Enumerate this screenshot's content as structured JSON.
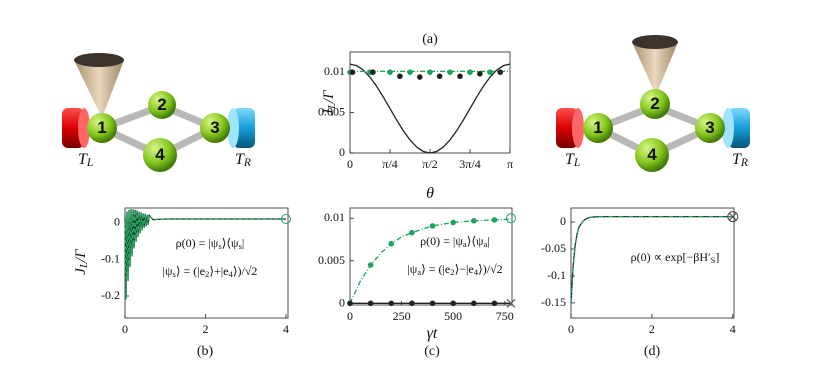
{
  "chart_data": [
    {
      "type": "line",
      "title": "(a)",
      "xlabel": "θ",
      "ylabel": "J_L/Γ",
      "xlim": [
        0,
        3.1416
      ],
      "ylim": [
        0,
        0.0125
      ],
      "xticks": [
        0,
        {
          "value": 0.7854,
          "label": "π/4"
        },
        {
          "value": 1.5708,
          "label": "π/2"
        },
        {
          "value": 2.3562,
          "label": "3π/4"
        },
        {
          "value": 3.1416,
          "label": "π"
        }
      ],
      "yticks": [
        0,
        0.005,
        0.01
      ],
      "series": [
        {
          "color": "#222222",
          "linestyle": "solid",
          "x": [
            0,
            0.1309,
            0.2618,
            0.3927,
            0.5236,
            0.6545,
            0.7854,
            0.9163,
            1.0472,
            1.1781,
            1.309,
            1.4399,
            1.5708,
            1.7017,
            1.8326,
            1.9635,
            2.0944,
            2.2253,
            2.3562,
            2.4871,
            2.618,
            2.7489,
            2.8798,
            3.0107,
            3.1416
          ],
          "values": [
            0.011,
            0.01081,
            0.01026,
            0.00939,
            0.00825,
            0.00692,
            0.0055,
            0.00408,
            0.00275,
            0.00161,
            0.00074,
            0.00019,
            0,
            0.00019,
            0.00074,
            0.00161,
            0.00275,
            0.00408,
            0.0055,
            0.00692,
            0.00825,
            0.00939,
            0.01026,
            0.01081,
            0.011
          ]
        },
        {
          "color": "#1fa35c",
          "linestyle": "dashdot",
          "x": [
            0,
            3.1416
          ],
          "values": [
            0.0101,
            0.0101
          ]
        },
        {
          "color": "#1fa35c",
          "marker": "dot",
          "x": [
            0,
            0.393,
            0.785,
            1.178,
            1.571,
            1.963,
            2.356,
            2.749
          ],
          "values": [
            0.01,
            0.01,
            0.01,
            0.01,
            0.01,
            0.01,
            0.01,
            0.01
          ]
        },
        {
          "color": "#222222",
          "marker": "dot",
          "x": [
            0.05,
            0.45,
            0.98,
            1.37,
            1.76,
            2.16,
            2.55,
            2.95
          ],
          "values": [
            0.01,
            0.01,
            0.0095,
            0.0094,
            0.0095,
            0.0095,
            0.0098,
            0.01
          ]
        }
      ]
    },
    {
      "type": "line",
      "title": "(b)",
      "ylabel": "J_L/Γ",
      "annotations": [
        "ρ(0) = |ψ_s⟩⟨ψ_s|",
        "|ψ_s⟩ = (|e_2⟩+|e_4⟩)/√2"
      ],
      "xlim": [
        0,
        4.05
      ],
      "ylim": [
        -0.26,
        0.04
      ],
      "xticks": [
        0,
        2,
        4
      ],
      "yticks": [
        0,
        -0.1,
        -0.2
      ],
      "series": [
        {
          "color": "#222222",
          "linestyle": "solid",
          "x": [
            0,
            0.025,
            0.05,
            0.075,
            0.1,
            0.125,
            0.15,
            0.175,
            0.2,
            0.225,
            0.25,
            0.275,
            0.3,
            0.325,
            0.35,
            0.375,
            0.4,
            0.425,
            0.45,
            0.475,
            0.5,
            0.525,
            0.55,
            0.575,
            0.6,
            0.7,
            0.8,
            1,
            2,
            3,
            4
          ],
          "values": [
            0.02,
            -0.209,
            0.03,
            -0.159,
            0.035,
            -0.121,
            0.037,
            -0.092,
            0.036,
            -0.07,
            0.035,
            -0.052,
            0.033,
            -0.039,
            0.03,
            -0.029,
            0.028,
            -0.021,
            0.025,
            -0.014,
            0.024,
            -0.01,
            0.021,
            -0.006,
            0.02,
            0.008,
            0.009,
            0.01,
            0.01,
            0.01,
            0.01
          ]
        },
        {
          "color": "#1fa35c",
          "linestyle": "dashed",
          "x": [
            0,
            0.025,
            0.05,
            0.075,
            0.1,
            0.125,
            0.15,
            0.175,
            0.2,
            0.225,
            0.25,
            0.275,
            0.3,
            0.325,
            0.35,
            0.375,
            0.4,
            0.425,
            0.45,
            0.475,
            0.5,
            0.525,
            0.55,
            0.575,
            0.6,
            0.7,
            0.8,
            1,
            2,
            3,
            4
          ],
          "values": [
            0.02,
            -0.209,
            0.03,
            -0.159,
            0.035,
            -0.121,
            0.037,
            -0.092,
            0.036,
            -0.07,
            0.035,
            -0.052,
            0.033,
            -0.039,
            0.03,
            -0.029,
            0.028,
            -0.021,
            0.025,
            -0.014,
            0.024,
            -0.01,
            0.021,
            -0.006,
            0.02,
            0.008,
            0.009,
            0.01,
            0.01,
            0.01,
            0.01
          ]
        },
        {
          "color": "#1fa35c",
          "marker": "circle",
          "x": [
            4
          ],
          "values": [
            0.01
          ]
        }
      ]
    },
    {
      "type": "line",
      "title": "(c)",
      "xlabel": "γt",
      "annotations": [
        "ρ(0) = |ψ_a⟩⟨ψ_a|",
        "|ψ_a⟩ = (|e_2⟩−|e_4⟩)/√2"
      ],
      "xlim": [
        0,
        785
      ],
      "ylim": [
        -0.0002,
        0.0112
      ],
      "xticks": [
        0,
        250,
        500,
        750
      ],
      "yticks": [
        0,
        0.005,
        0.01
      ],
      "series": [
        {
          "color": "#1fa35c",
          "linestyle": "dashdot",
          "x": [
            0,
            50,
            100,
            150,
            200,
            250,
            300,
            400,
            500,
            600,
            700,
            780
          ],
          "values": [
            0,
            0.0026,
            0.0045,
            0.0059,
            0.007,
            0.0078,
            0.0083,
            0.0091,
            0.0095,
            0.0097,
            0.0098,
            0.0099
          ]
        },
        {
          "color": "#1fa35c",
          "marker": "dot",
          "x": [
            0,
            100,
            200,
            300,
            400,
            500,
            600,
            700
          ],
          "values": [
            0,
            0.0045,
            0.007,
            0.0083,
            0.0091,
            0.0095,
            0.0097,
            0.0098
          ]
        },
        {
          "color": "#222222",
          "linestyle": "solid",
          "x": [
            0,
            780
          ],
          "values": [
            0,
            0
          ]
        },
        {
          "color": "#222222",
          "marker": "dot",
          "x": [
            0,
            100,
            200,
            300,
            400,
            500,
            600,
            700
          ],
          "values": [
            0,
            0,
            0,
            0,
            0,
            0,
            0,
            0
          ]
        },
        {
          "color": "#1fa35c",
          "marker": "circle",
          "x": [
            780
          ],
          "values": [
            0.01
          ]
        },
        {
          "color": "#555555",
          "marker": "x",
          "x": [
            780
          ],
          "values": [
            0
          ]
        }
      ]
    },
    {
      "type": "line",
      "title": "(d)",
      "annotations": [
        "ρ(0) ∝ exp[−βH′_S]"
      ],
      "xlim": [
        0,
        4.03
      ],
      "ylim": [
        -0.178,
        0.026
      ],
      "xticks": [
        0,
        2,
        4
      ],
      "yticks": [
        0,
        -0.05,
        -0.1,
        -0.15
      ],
      "series": [
        {
          "color": "#222222",
          "linestyle": "solid",
          "x": [
            0,
            0.05,
            0.1,
            0.15,
            0.2,
            0.3,
            0.4,
            0.5,
            0.7,
            1,
            2,
            4
          ],
          "values": [
            -0.15,
            -0.085,
            -0.045,
            -0.022,
            -0.009,
            0.002,
            0.007,
            0.009,
            0.01,
            0.01,
            0.01,
            0.01
          ]
        },
        {
          "color": "#1fa35c",
          "linestyle": "dashdot",
          "x": [
            0,
            0.05,
            0.1,
            0.15,
            0.2,
            0.3,
            0.4,
            0.5,
            0.7,
            1,
            2,
            4
          ],
          "values": [
            -0.15,
            -0.085,
            -0.045,
            -0.022,
            -0.009,
            0.002,
            0.007,
            0.009,
            0.01,
            0.01,
            0.01,
            0.01
          ]
        },
        {
          "color": "#444444",
          "marker": "circle-x",
          "x": [
            4
          ],
          "values": [
            0.01
          ]
        }
      ]
    }
  ],
  "diagrams": [
    {
      "nodes": [
        "1",
        "2",
        "3",
        "4"
      ],
      "left": "T_L",
      "right": "T_R"
    },
    {
      "nodes": [
        "1",
        "2",
        "3",
        "4"
      ],
      "left": "T_L",
      "right": "T_R"
    }
  ]
}
